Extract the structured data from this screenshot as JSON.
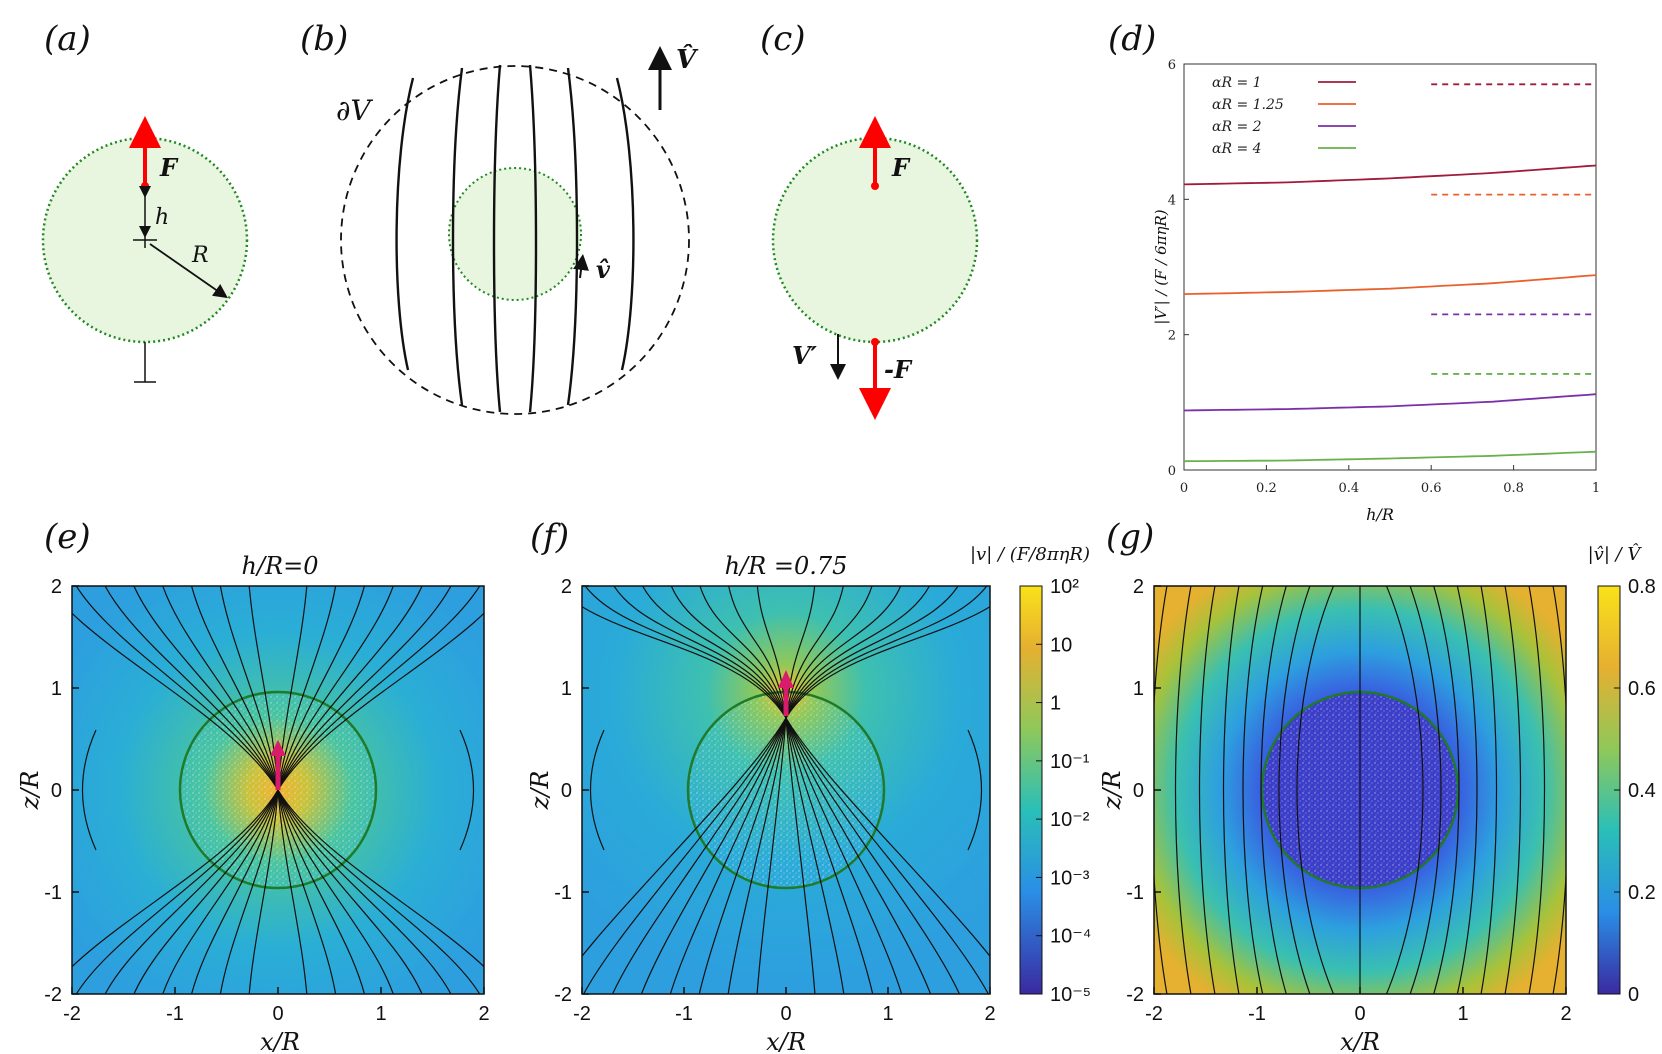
{
  "panels": {
    "a": "(a)",
    "b": "(b)",
    "c": "(c)",
    "d": "(d)",
    "e": "(e)",
    "f": "(f)",
    "g": "(g)"
  },
  "diagram_a": {
    "force": "F",
    "offset": "h",
    "radius": "R"
  },
  "diagram_b": {
    "boundary": "∂V",
    "velocity": "V̂",
    "flow": "v̂"
  },
  "diagram_c": {
    "force": "F",
    "neg_force": "-F",
    "vel": "V′"
  },
  "colors": {
    "sphere_fill": "#e8f5df",
    "sphere_edge": "#1f8a1f",
    "force": "#ff0000",
    "force_f": "#d81b6a"
  },
  "chart_data": [
    {
      "type": "line",
      "panel": "(d)",
      "xlabel": "h/R",
      "ylabel": "|V′| / (F / 6πηR)",
      "xlim": [
        0,
        1
      ],
      "ylim": [
        0,
        6
      ],
      "xticks": [
        "0",
        "0.2",
        "0.4",
        "0.6",
        "0.8",
        "1"
      ],
      "yticks": [
        "0",
        "2",
        "4",
        "6"
      ],
      "series": [
        {
          "name": "αR = 1",
          "color": "#a01b3c",
          "x": [
            0,
            0.25,
            0.5,
            0.75,
            1
          ],
          "y": [
            4.22,
            4.25,
            4.31,
            4.39,
            4.5
          ],
          "dashed_level": 5.7
        },
        {
          "name": "αR = 1.25",
          "color": "#e8612c",
          "x": [
            0,
            0.25,
            0.5,
            0.75,
            1
          ],
          "y": [
            2.6,
            2.63,
            2.68,
            2.76,
            2.88
          ],
          "dashed_level": 4.07
        },
        {
          "name": "αR = 2",
          "color": "#7b2fa8",
          "x": [
            0,
            0.25,
            0.5,
            0.75,
            1
          ],
          "y": [
            0.88,
            0.9,
            0.94,
            1.01,
            1.12
          ],
          "dashed_level": 2.3
        },
        {
          "name": "αR = 4",
          "color": "#6ab04c",
          "x": [
            0,
            0.25,
            0.5,
            0.75,
            1
          ],
          "y": [
            0.13,
            0.14,
            0.17,
            0.21,
            0.27
          ],
          "dashed_level": 1.42
        }
      ]
    },
    {
      "type": "heatmap",
      "panel": "(e)",
      "title": "h/R=0",
      "xlabel": "x/R",
      "ylabel": "z/R",
      "xlim": [
        -2,
        2
      ],
      "ylim": [
        -2,
        2
      ],
      "xticks": [
        "-2",
        "-1",
        "0",
        "1",
        "2"
      ],
      "yticks": [
        "-2",
        "-1",
        "0",
        "1",
        "2"
      ]
    },
    {
      "type": "heatmap",
      "panel": "(f)",
      "title": "h/R =0.75",
      "xlabel": "x/R",
      "ylabel": "z/R",
      "xlim": [
        -2,
        2
      ],
      "ylim": [
        -2,
        2
      ],
      "xticks": [
        "-2",
        "-1",
        "0",
        "1",
        "2"
      ],
      "yticks": [
        "-2",
        "-1",
        "0",
        "1",
        "2"
      ],
      "colorbar": {
        "label": "|v| / (F/8πηR)",
        "scale": "log",
        "ticks": [
          "10²",
          "10",
          "1",
          "10⁻¹",
          "10⁻²",
          "10⁻³",
          "10⁻⁴",
          "10⁻⁵"
        ]
      }
    },
    {
      "type": "heatmap",
      "panel": "(g)",
      "title": "",
      "xlabel": "x/R",
      "ylabel": "z/R",
      "xlim": [
        -2,
        2
      ],
      "ylim": [
        -2,
        2
      ],
      "xticks": [
        "-2",
        "-1",
        "0",
        "1",
        "2"
      ],
      "yticks": [
        "-2",
        "-1",
        "0",
        "1",
        "2"
      ],
      "colorbar": {
        "label": "|v̂| / V̂",
        "scale": "linear",
        "ticks": [
          "0.8",
          "0.6",
          "0.4",
          "0.2",
          "0"
        ]
      }
    }
  ]
}
